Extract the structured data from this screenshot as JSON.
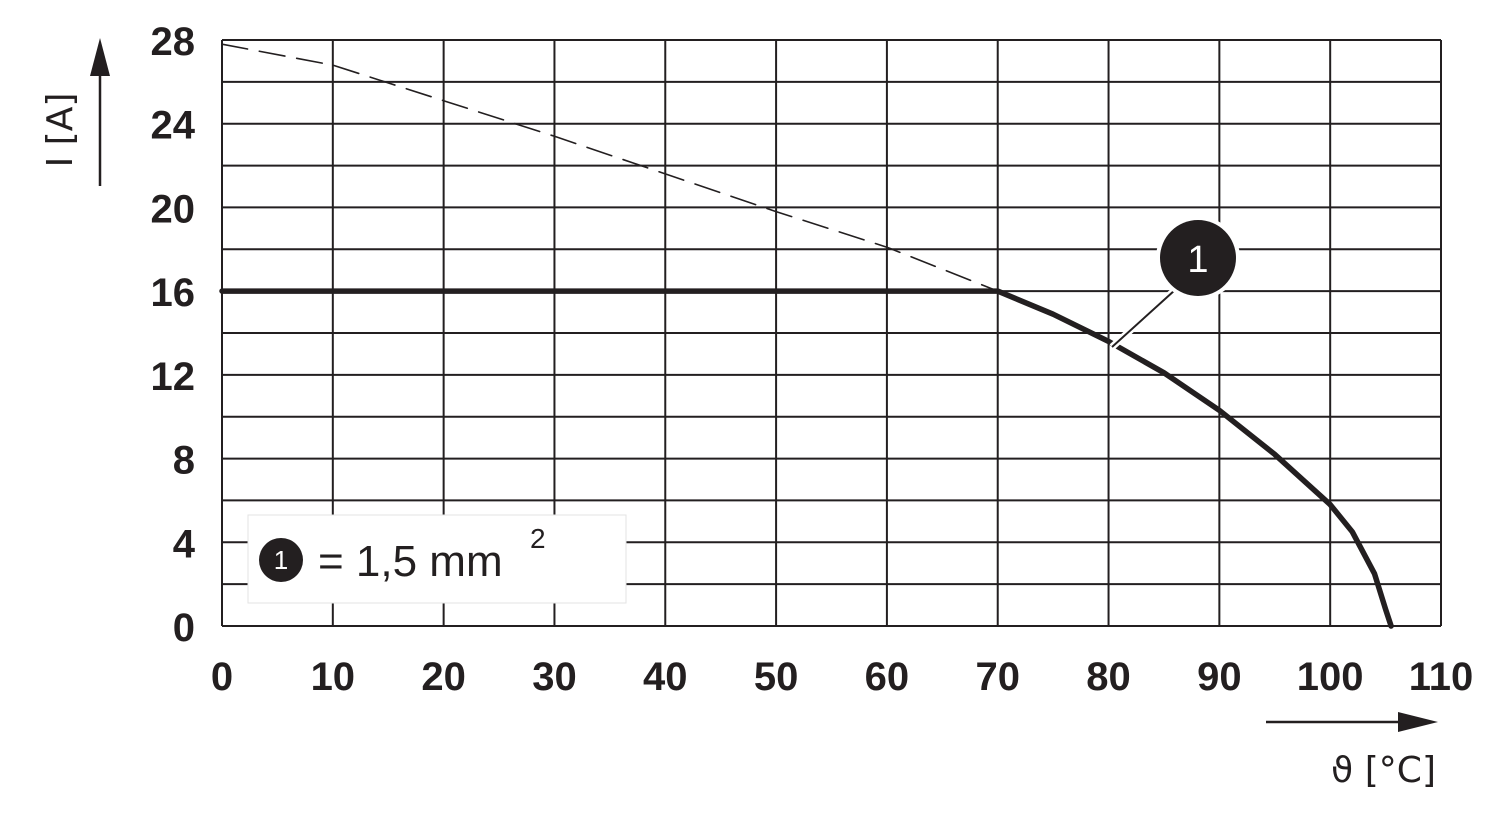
{
  "chart_data": {
    "type": "line",
    "xlabel": "ϑ [°C]",
    "ylabel": "I [A]",
    "xlim": [
      0,
      110
    ],
    "ylim": [
      0,
      28
    ],
    "x_ticks": [
      "0",
      "10",
      "20",
      "30",
      "40",
      "50",
      "60",
      "70",
      "80",
      "90",
      "100",
      "110"
    ],
    "y_ticks": [
      "0",
      "4",
      "8",
      "12",
      "16",
      "20",
      "24",
      "28"
    ],
    "grid": true,
    "series": [
      {
        "name": "1",
        "style": "solid",
        "points": [
          [
            0,
            16
          ],
          [
            70,
            16
          ],
          [
            75,
            14.9
          ],
          [
            80,
            13.6
          ],
          [
            85,
            12.1
          ],
          [
            90,
            10.3
          ],
          [
            95,
            8.2
          ],
          [
            100,
            5.8
          ],
          [
            102,
            4.5
          ],
          [
            104,
            2.5
          ],
          [
            105,
            0.8
          ],
          [
            105.5,
            0
          ]
        ]
      },
      {
        "style": "dashed",
        "points": [
          [
            0,
            27.8
          ],
          [
            10,
            26.8
          ],
          [
            20,
            25.1
          ],
          [
            30,
            23.4
          ],
          [
            40,
            21.6
          ],
          [
            50,
            19.8
          ],
          [
            60,
            18.1
          ],
          [
            70,
            16
          ]
        ]
      }
    ],
    "callout": {
      "label": "1",
      "target": [
        81,
        13.4
      ]
    },
    "legend": {
      "marker": "1",
      "text": "= 1,5 mm",
      "superscript": "2",
      "position": "bottom-left"
    }
  }
}
